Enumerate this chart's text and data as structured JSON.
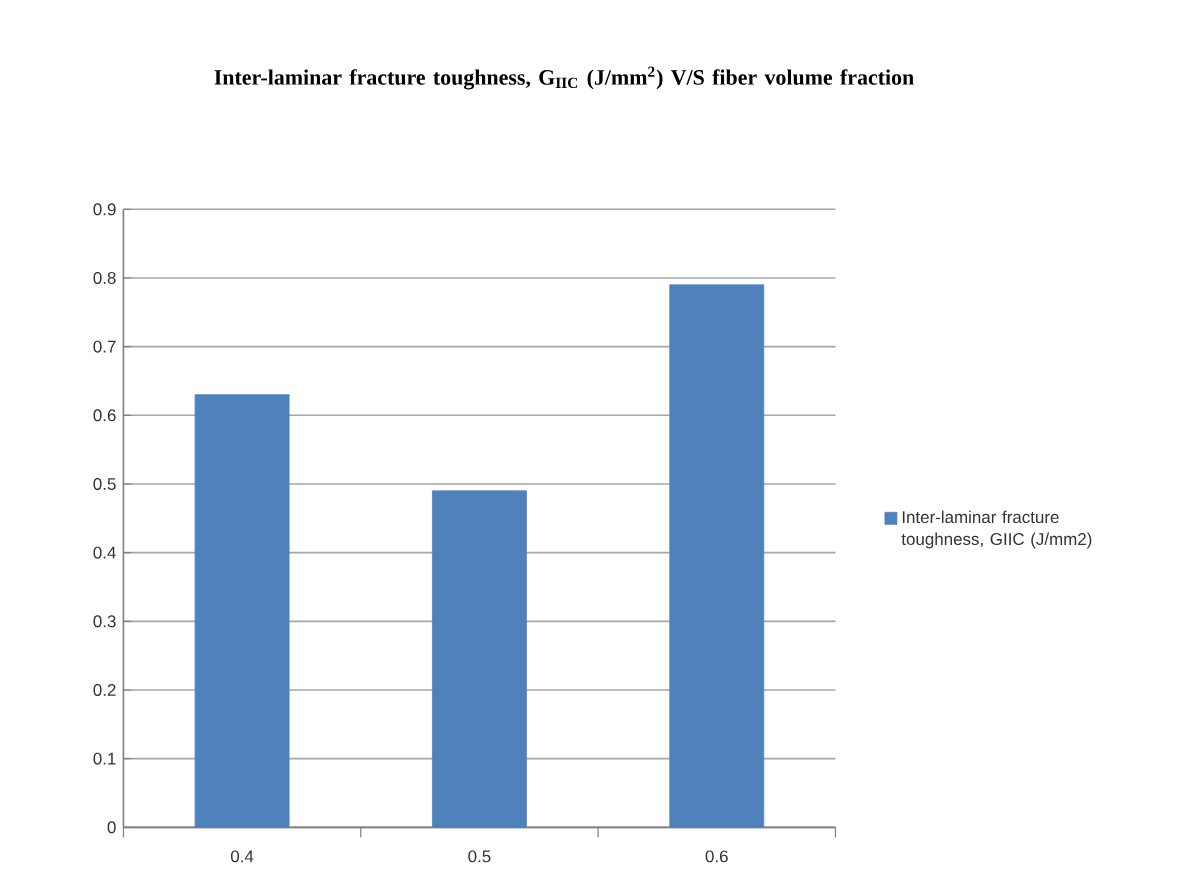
{
  "chart_data": {
    "type": "bar",
    "title": "Inter-laminar fracture toughness, G$_{IIC}$ (J/mm$^{2}$) V/S fiber volume fraction",
    "categories": [
      "0.4",
      "0.5",
      "0.6"
    ],
    "series": [
      {
        "name": "Inter-laminar fracture toughness, GIIC (J/mm2)",
        "color": "#4f81bd",
        "values": [
          0.63,
          0.49,
          0.79
        ]
      }
    ],
    "ylim": [
      0,
      0.9
    ],
    "yticks": [
      0,
      0.1,
      0.2,
      0.3,
      0.4,
      0.5,
      0.6,
      0.7,
      0.8,
      0.9
    ],
    "grid": "y",
    "legend": "right"
  }
}
